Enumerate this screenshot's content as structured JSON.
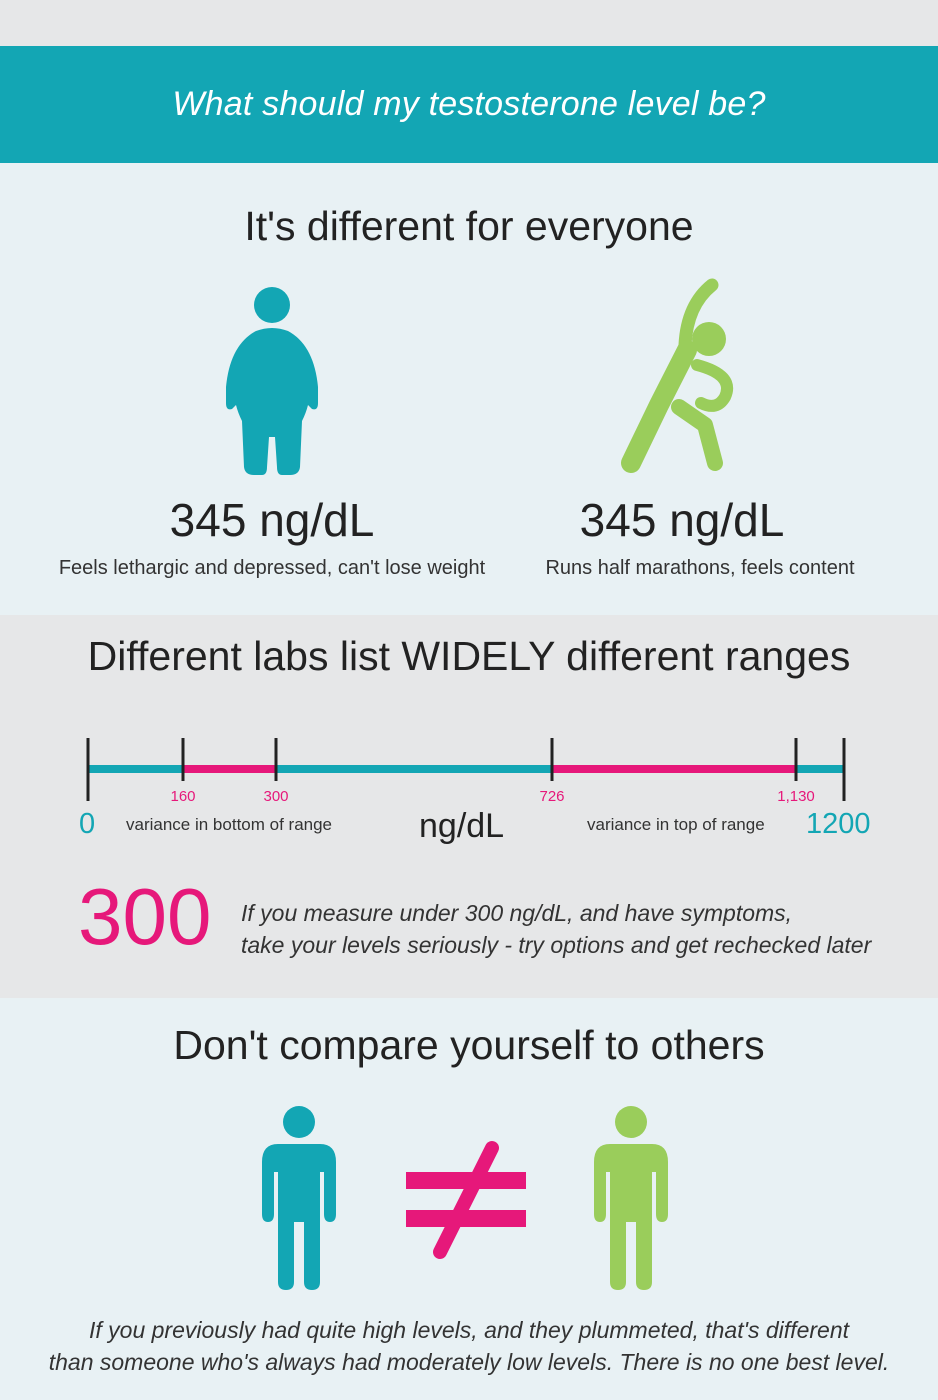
{
  "header": {
    "title": "What should my testosterone level be?"
  },
  "section_everyone": {
    "heading": "It's different for everyone",
    "left": {
      "value": "345 ng/dL",
      "caption": "Feels lethargic and depressed, can't lose weight"
    },
    "right": {
      "value": "345 ng/dL",
      "caption": "Runs half marathons, feels content"
    }
  },
  "section_labs": {
    "heading": "Different labs list WIDELY different ranges",
    "scale": {
      "min_label": "0",
      "max_label": "1200",
      "unit": "ng/dL",
      "ticks": [
        "160",
        "300",
        "726",
        "1,130"
      ],
      "bottom_note": "variance in bottom of range",
      "top_note": "variance in top of range"
    },
    "callout": {
      "number": "300",
      "line1": "If you measure under 300 ng/dL, and have symptoms,",
      "line2": "take your levels seriously - try options and get rechecked later"
    }
  },
  "section_compare": {
    "heading": "Don't compare yourself to others",
    "footer_line1": "If you previously had quite high levels, and they plummeted, that's different",
    "footer_line2": "than someone who's always had moderately low levels. There is no one best level."
  },
  "colors": {
    "teal": "#13a6b4",
    "pink": "#e6187a",
    "green": "#9acd5b"
  }
}
